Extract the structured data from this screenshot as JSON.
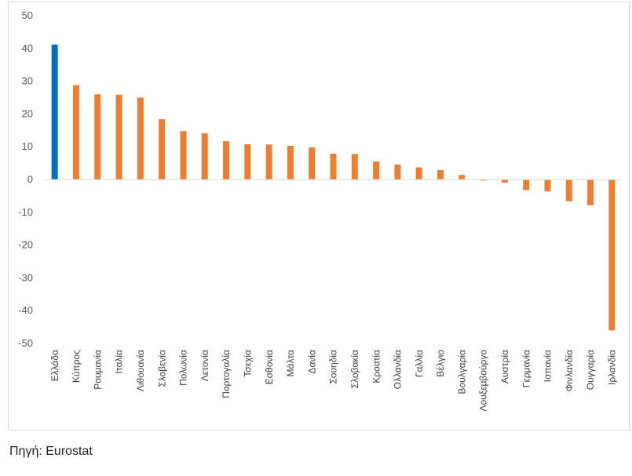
{
  "chart_data": {
    "type": "bar",
    "title": "",
    "xlabel": "",
    "ylabel": "",
    "ylim": [
      -50,
      50
    ],
    "yticks": [
      50,
      40,
      30,
      20,
      10,
      0,
      -10,
      -20,
      -30,
      -40,
      -50
    ],
    "grid": false,
    "legend": "none",
    "categories": [
      "Ελλάδα",
      "Κύπρος",
      "Ρουμανία",
      "Ιταλία",
      "Λιθουανία",
      "Σλοβενία",
      "Πολωνία",
      "Λετονία",
      "Πορτογαλία",
      "Τσεχία",
      "Εσθονία",
      "Μάλτα",
      "Δανία",
      "Σουηδία",
      "Σλοβακία",
      "Κροατία",
      "Ολλανδία",
      "Γαλλία",
      "Βέλγιο",
      "Βουλγαρία",
      "Λουξεμβούργο",
      "Αυστρία",
      "Γερμανία",
      "Ισπανία",
      "Φινλανδία",
      "Ουγγαρία",
      "Ιρλανδία"
    ],
    "values": [
      41.2,
      28.8,
      26.0,
      25.9,
      25.0,
      18.4,
      14.8,
      14.1,
      11.7,
      10.8,
      10.7,
      10.3,
      9.8,
      7.9,
      7.8,
      5.5,
      4.6,
      3.7,
      2.9,
      1.4,
      -0.3,
      -0.9,
      -3.2,
      -3.6,
      -6.6,
      -7.8,
      -46.0
    ],
    "colors": [
      "#0070C0",
      "#ED7D31",
      "#ED7D31",
      "#ED7D31",
      "#ED7D31",
      "#ED7D31",
      "#ED7D31",
      "#ED7D31",
      "#ED7D31",
      "#ED7D31",
      "#ED7D31",
      "#ED7D31",
      "#ED7D31",
      "#ED7D31",
      "#ED7D31",
      "#ED7D31",
      "#ED7D31",
      "#ED7D31",
      "#ED7D31",
      "#ED7D31",
      "#ED7D31",
      "#ED7D31",
      "#ED7D31",
      "#ED7D31",
      "#ED7D31",
      "#ED7D31",
      "#ED7D31"
    ]
  },
  "colors": {
    "highlight": "#0070C0",
    "bars": "#ED7D31",
    "axis": "#d9d9d9"
  },
  "source": "Πηγή: Eurostat"
}
